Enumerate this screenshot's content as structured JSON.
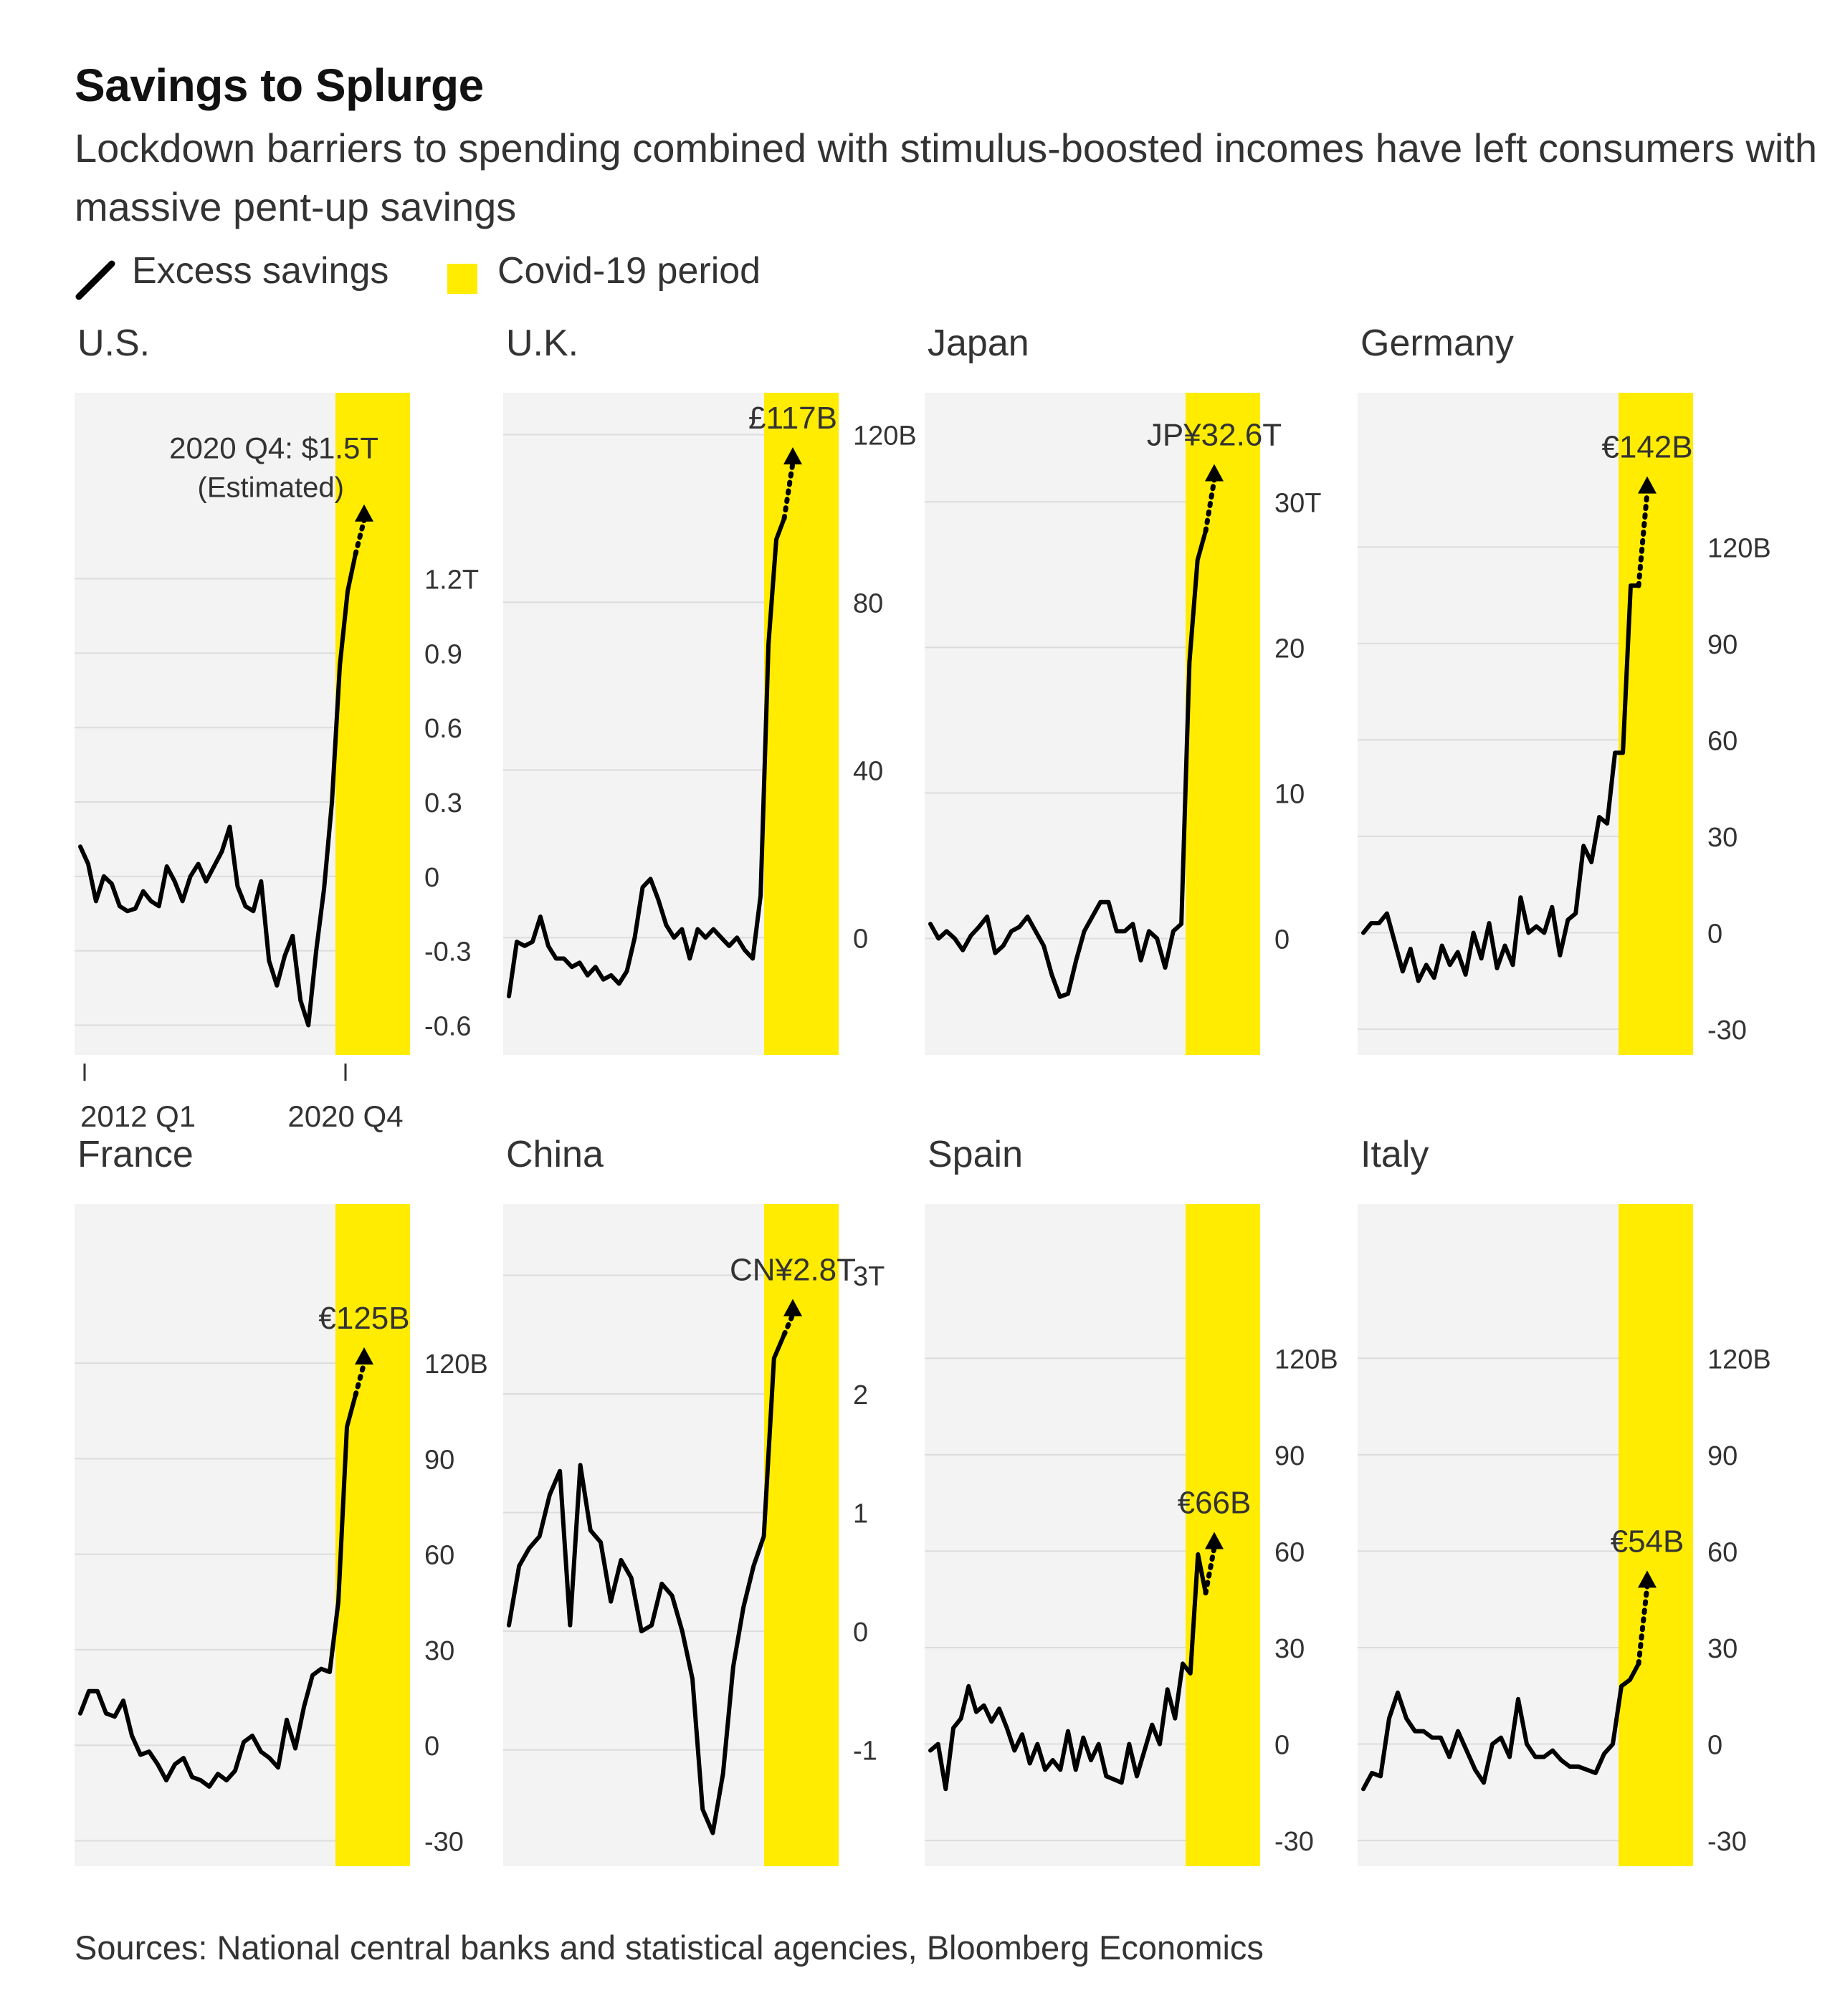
{
  "title": "Savings to Splurge",
  "subtitle": "Lockdown barriers to spending combined with stimulus-boosted incomes have left consumers with massive pent-up savings",
  "legend": {
    "line_label": "Excess savings",
    "period_label": "Covid-19 period"
  },
  "source": "Sources: National central banks and statistical agencies, Bloomberg Economics",
  "colors": {
    "covid_band": "#ffec00",
    "panel_bg": "#f3f3f3",
    "line": "#000000",
    "grid": "#dcdcdc",
    "text": "#333333"
  },
  "x_axis": {
    "start_label": "2012 Q1",
    "end_label": "2020 Q4"
  },
  "chart_data": [
    {
      "type": "line",
      "country": "U.S.",
      "annotation": "2020 Q4: $1.5T",
      "annotation_sub": "(Estimated)",
      "ylim": [
        -0.72,
        1.95
      ],
      "yticks": [
        -0.6,
        -0.3,
        0,
        0.3,
        0.6,
        0.9,
        1.2
      ],
      "ytick_labels": [
        "-0.6",
        "-0.3",
        "0",
        "0.3",
        "0.6",
        "0.9",
        "1.2T"
      ],
      "values": [
        0.12,
        0.05,
        -0.1,
        0.0,
        -0.03,
        -0.12,
        -0.14,
        -0.13,
        -0.06,
        -0.1,
        -0.12,
        0.04,
        -0.02,
        -0.1,
        0.0,
        0.05,
        -0.02,
        0.04,
        0.1,
        0.2,
        -0.04,
        -0.12,
        -0.14,
        -0.02,
        -0.34,
        -0.44,
        -0.32,
        -0.24,
        -0.5,
        -0.6,
        -0.3,
        -0.05,
        0.3,
        0.85,
        1.15,
        1.3
      ],
      "estimate": 1.5
    },
    {
      "type": "line",
      "country": "U.K.",
      "annotation": "£117B",
      "ylim": [
        -28,
        130
      ],
      "yticks": [
        0,
        40,
        80,
        120
      ],
      "ytick_labels": [
        "0",
        "40",
        "80",
        "120B"
      ],
      "values": [
        -14,
        -1,
        -2,
        -1,
        5,
        -2,
        -5,
        -5,
        -7,
        -6,
        -9,
        -7,
        -10,
        -9,
        -11,
        -8,
        0,
        12,
        14,
        9,
        3,
        0,
        2,
        -5,
        2,
        0,
        2,
        0,
        -2,
        0,
        -3,
        -5,
        10,
        70,
        95,
        100
      ],
      "estimate": 117
    },
    {
      "type": "line",
      "country": "Japan",
      "annotation": "JP¥32.6T",
      "ylim": [
        -8,
        37.5
      ],
      "yticks": [
        0,
        10,
        20,
        30
      ],
      "ytick_labels": [
        "0",
        "10",
        "20",
        "30T"
      ],
      "values": [
        1,
        0,
        0.5,
        0,
        -0.8,
        0.2,
        0.8,
        1.5,
        -1,
        -0.5,
        0.5,
        0.8,
        1.5,
        0.5,
        -0.5,
        -2.5,
        -4,
        -3.8,
        -1.5,
        0.5,
        1.5,
        2.5,
        2.5,
        0.5,
        0.5,
        1,
        -1.5,
        0.5,
        0,
        -2,
        0.5,
        1,
        19,
        26,
        28
      ],
      "estimate": 32.6
    },
    {
      "type": "line",
      "country": "Germany",
      "annotation": "€142B",
      "ylim": [
        -38,
        168
      ],
      "yticks": [
        -30,
        0,
        30,
        60,
        90,
        120
      ],
      "ytick_labels": [
        "-30",
        "0",
        "30",
        "60",
        "90",
        "120B"
      ],
      "values": [
        0,
        3,
        3,
        6,
        -3,
        -12,
        -5,
        -15,
        -10,
        -14,
        -4,
        -10,
        -6,
        -13,
        0,
        -8,
        3,
        -11,
        -4,
        -10,
        11,
        0,
        2,
        0,
        8,
        -7,
        4,
        6,
        27,
        22,
        36,
        34,
        56,
        56,
        108,
        108
      ],
      "estimate": 142
    },
    {
      "type": "line",
      "country": "France",
      "annotation": "€125B",
      "ylim": [
        -38,
        170
      ],
      "yticks": [
        -30,
        0,
        30,
        60,
        90,
        120
      ],
      "ytick_labels": [
        "-30",
        "0",
        "30",
        "60",
        "90",
        "120B"
      ],
      "values": [
        10,
        17,
        17,
        10,
        9,
        14,
        3,
        -3,
        -2,
        -6,
        -11,
        -6,
        -4,
        -10,
        -11,
        -13,
        -9,
        -11,
        -8,
        1,
        3,
        -2,
        -4,
        -7,
        8,
        -1,
        12,
        22,
        24,
        23,
        45,
        100,
        110
      ],
      "estimate": 125
    },
    {
      "type": "line",
      "country": "China",
      "annotation": "CN¥2.8T",
      "ylim": [
        -1.98,
        3.6
      ],
      "yticks": [
        -1,
        0,
        1,
        2,
        3
      ],
      "ytick_labels": [
        "-1",
        "0",
        "1",
        "2",
        "3T"
      ],
      "values": [
        0.05,
        0.55,
        0.7,
        0.8,
        1.15,
        1.35,
        0.05,
        1.4,
        0.85,
        0.75,
        0.25,
        0.6,
        0.45,
        0.0,
        0.05,
        0.4,
        0.3,
        0.0,
        -0.4,
        -1.5,
        -1.7,
        -1.2,
        -0.3,
        0.2,
        0.55,
        0.8,
        2.3,
        2.5
      ],
      "estimate": 2.8
    },
    {
      "type": "line",
      "country": "Spain",
      "annotation": "€66B",
      "ylim": [
        -38,
        168
      ],
      "yticks": [
        -30,
        0,
        30,
        60,
        90,
        120
      ],
      "ytick_labels": [
        "-30",
        "0",
        "30",
        "60",
        "90",
        "120B"
      ],
      "values": [
        -2,
        0,
        -14,
        5,
        8,
        18,
        10,
        12,
        7,
        11,
        5,
        -2,
        3,
        -6,
        0,
        -8,
        -5,
        -8,
        4,
        -8,
        2,
        -5,
        0,
        -10,
        -11,
        -12,
        0,
        -10,
        -2,
        6,
        0,
        17,
        8,
        25,
        22,
        59,
        47
      ],
      "estimate": 66
    },
    {
      "type": "line",
      "country": "Italy",
      "annotation": "€54B",
      "ylim": [
        -38,
        168
      ],
      "yticks": [
        -30,
        0,
        30,
        60,
        90,
        120
      ],
      "ytick_labels": [
        "-30",
        "0",
        "30",
        "60",
        "90",
        "120B"
      ],
      "values": [
        -14,
        -9,
        -10,
        8,
        16,
        8,
        4,
        4,
        2,
        2,
        -4,
        4,
        -2,
        -8,
        -12,
        0,
        2,
        -4,
        14,
        0,
        -4,
        -4,
        -2,
        -5,
        -7,
        -7,
        -8,
        -9,
        -3,
        0,
        18,
        20,
        25
      ],
      "estimate": 54
    }
  ]
}
